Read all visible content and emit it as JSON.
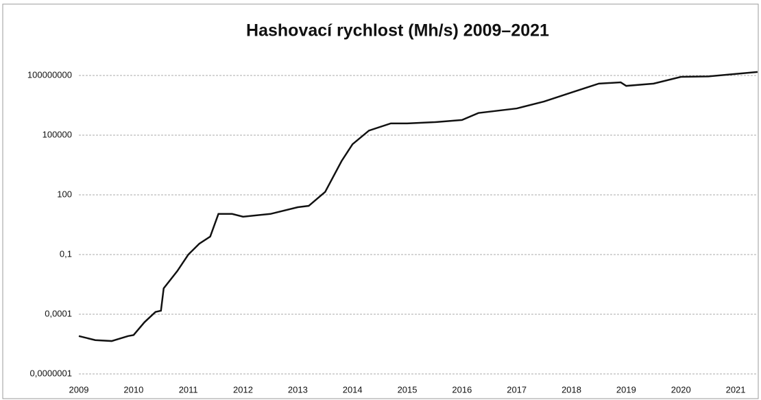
{
  "chart_data": {
    "type": "line",
    "title": "Hashovací rychlost (Mh/s) 2009–2021",
    "log_scale": true,
    "grid": true,
    "xlim": [
      2009,
      2021.4
    ],
    "xticks": [
      2009,
      2010,
      2011,
      2012,
      2013,
      2014,
      2015,
      2016,
      2017,
      2018,
      2019,
      2020,
      2021
    ],
    "ylim": [
      1e-07,
      1000000000
    ],
    "yticks": [
      {
        "value": 1e-07,
        "label": "0,0000001"
      },
      {
        "value": 0.0001,
        "label": "0,0001"
      },
      {
        "value": 0.1,
        "label": "0,1"
      },
      100,
      100000,
      100000000
    ],
    "series": [
      {
        "color": "#111111",
        "x": [
          2009.0,
          2009.3,
          2009.6,
          2009.9,
          2010.0,
          2010.2,
          2010.4,
          2010.5,
          2010.55,
          2010.8,
          2011.0,
          2011.2,
          2011.4,
          2011.55,
          2011.8,
          2012.0,
          2012.5,
          2013.0,
          2013.2,
          2013.5,
          2013.8,
          2014.0,
          2014.3,
          2014.7,
          2015.0,
          2015.5,
          2016.0,
          2016.3,
          2017.0,
          2017.5,
          2018.0,
          2018.5,
          2018.9,
          2019.0,
          2019.5,
          2020.0,
          2020.5,
          2021.0,
          2021.4
        ],
        "values": [
          8e-06,
          5e-06,
          4.5e-06,
          8e-06,
          9e-06,
          4e-05,
          0.00013,
          0.00015,
          0.002,
          0.015,
          0.1,
          0.35,
          0.8,
          11,
          11,
          8,
          11,
          24,
          28,
          140,
          5000,
          35000,
          170000,
          390000,
          390000,
          450000,
          580000,
          1300000,
          2200000,
          4900000,
          14000000,
          39000000,
          45000000,
          30000000,
          39000000,
          85000000,
          90000000,
          120000000,
          150000000
        ]
      }
    ]
  }
}
